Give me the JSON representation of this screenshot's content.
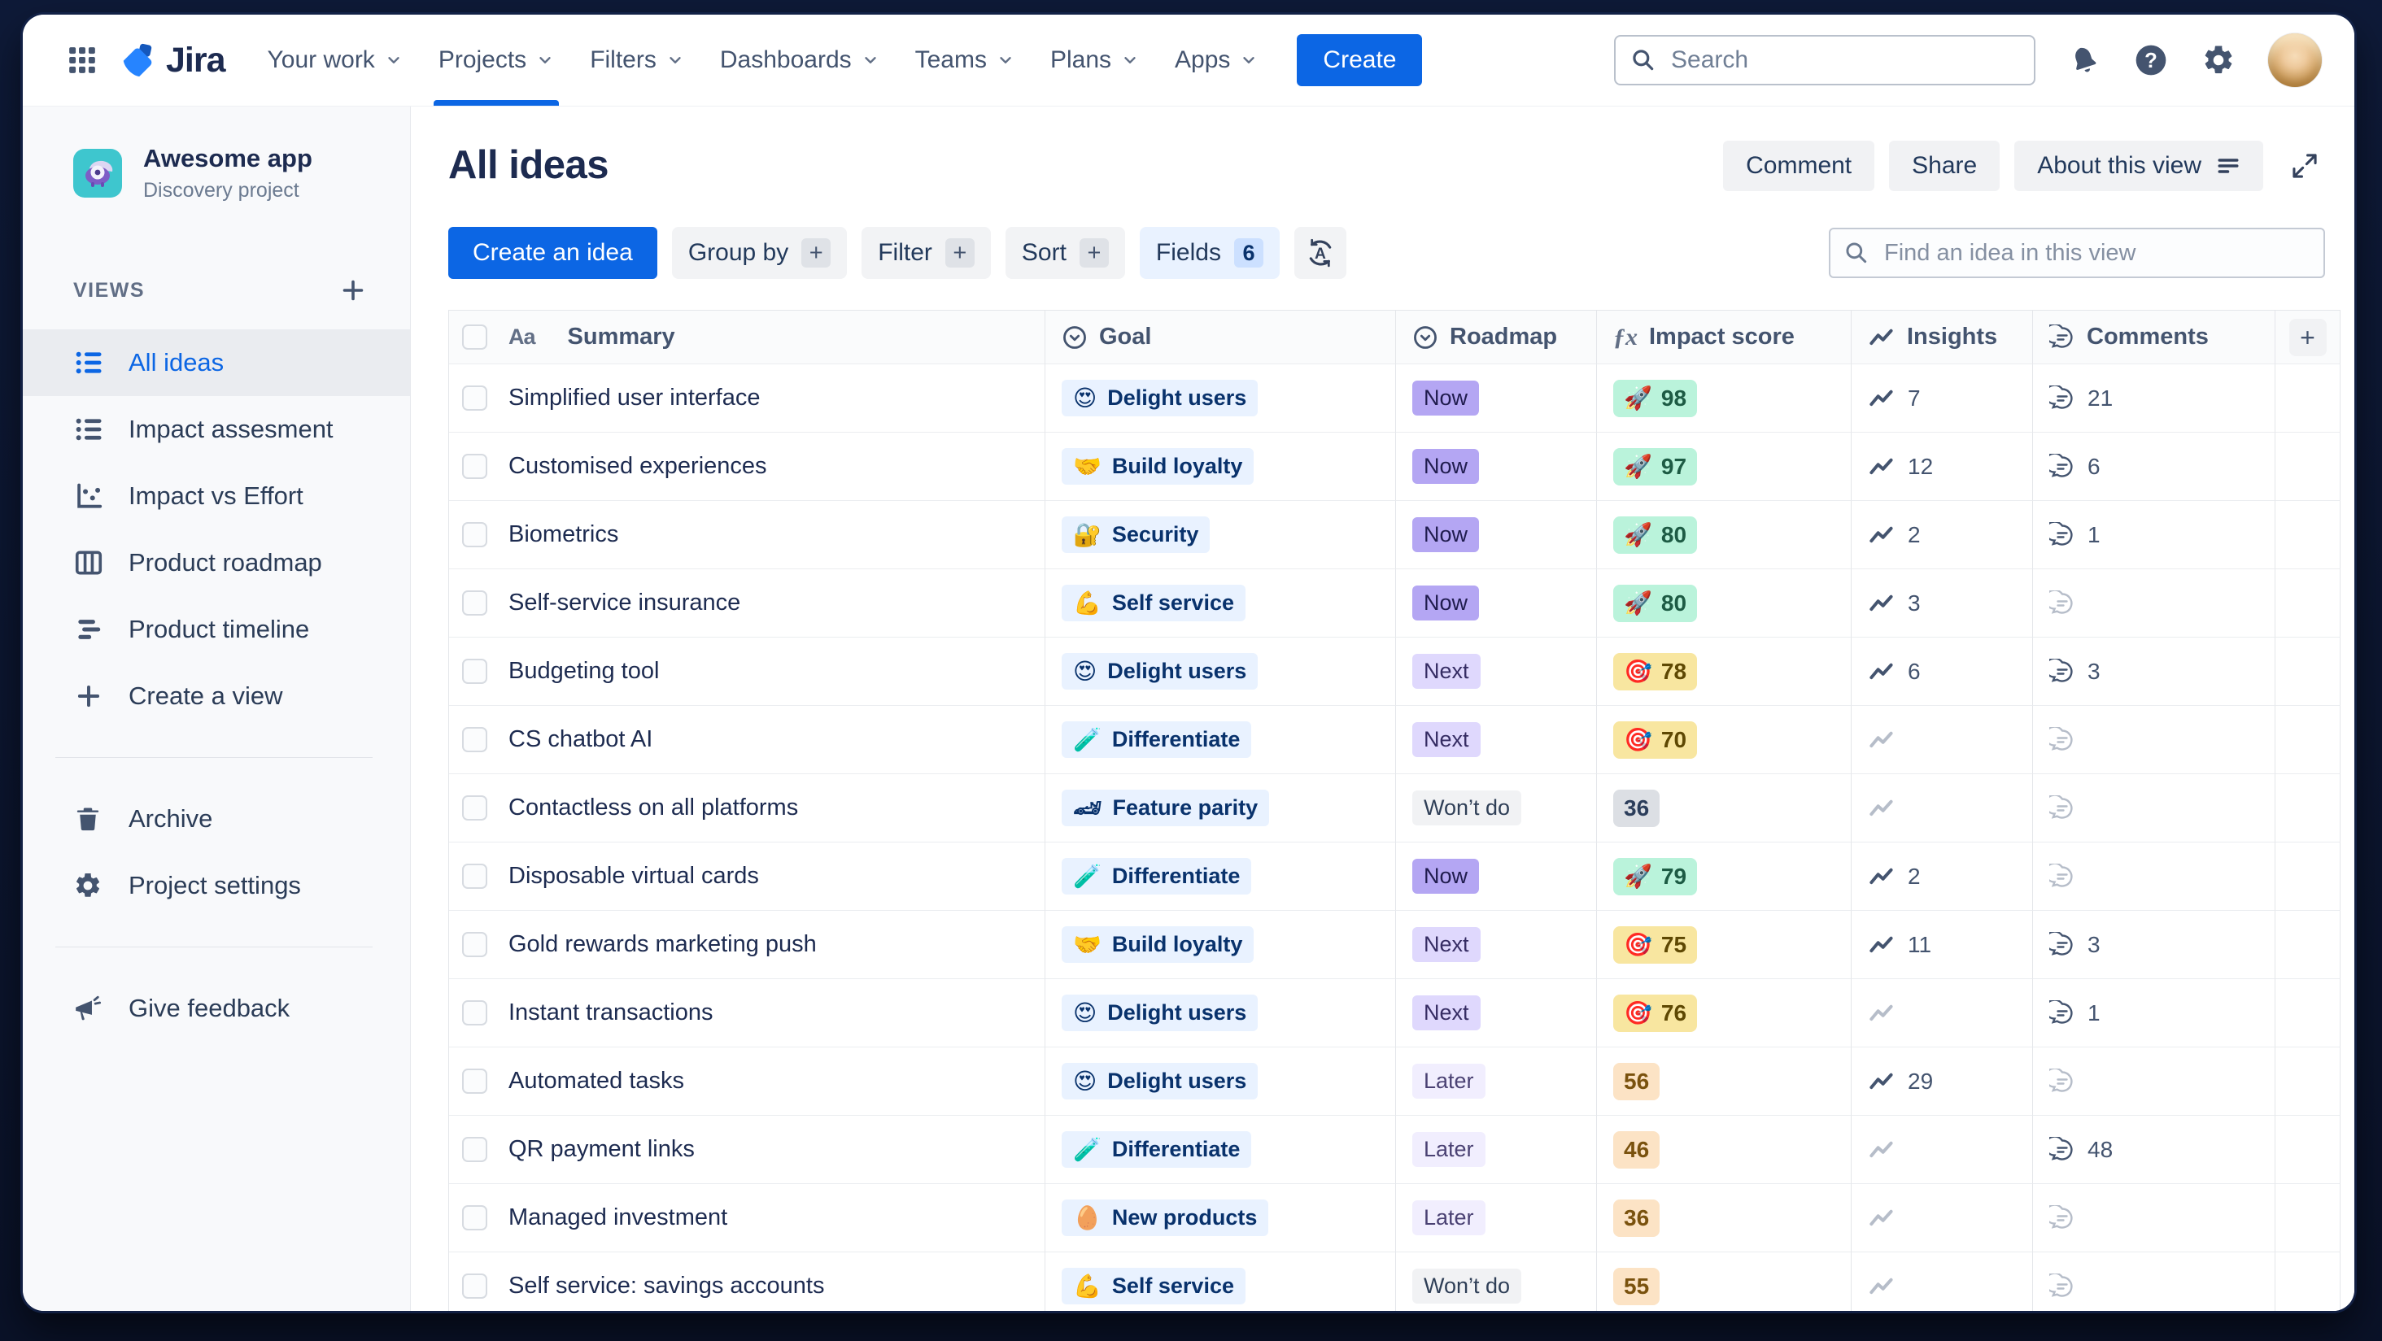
{
  "topnav": {
    "logo_text": "Jira",
    "menu": [
      {
        "label": "Your work",
        "active": false
      },
      {
        "label": "Projects",
        "active": true
      },
      {
        "label": "Filters",
        "active": false
      },
      {
        "label": "Dashboards",
        "active": false
      },
      {
        "label": "Teams",
        "active": false
      },
      {
        "label": "Plans",
        "active": false
      },
      {
        "label": "Apps",
        "active": false
      }
    ],
    "create_label": "Create",
    "search_placeholder": "Search",
    "right_icons": [
      "bell-icon",
      "help-icon",
      "gear-icon",
      "avatar"
    ]
  },
  "sidebar": {
    "project_name": "Awesome app",
    "project_type": "Discovery project",
    "views_label": "VIEWS",
    "views": [
      {
        "label": "All ideas",
        "icon": "list-icon",
        "selected": true
      },
      {
        "label": "Impact assesment",
        "icon": "list-icon",
        "selected": false
      },
      {
        "label": "Impact vs Effort",
        "icon": "scatter-icon",
        "selected": false
      },
      {
        "label": "Product roadmap",
        "icon": "board-icon",
        "selected": false
      },
      {
        "label": "Product timeline",
        "icon": "timeline-icon",
        "selected": false
      },
      {
        "label": "Create a view",
        "icon": "plus-icon",
        "selected": false
      }
    ],
    "footer": [
      {
        "label": "Archive",
        "icon": "trash-icon"
      },
      {
        "label": "Project settings",
        "icon": "gear-icon"
      }
    ],
    "feedback_label": "Give feedback"
  },
  "main": {
    "title": "All ideas",
    "actions": {
      "comment": "Comment",
      "share": "Share",
      "about": "About this view"
    },
    "toolbar": {
      "create": "Create an idea",
      "group_by": "Group by",
      "filter": "Filter",
      "sort": "Sort",
      "fields": "Fields",
      "fields_count": "6",
      "find_placeholder": "Find an idea in this view"
    },
    "table": {
      "columns": [
        {
          "label": "Summary",
          "icon": "text-type-icon"
        },
        {
          "label": "Goal",
          "icon": "select-icon"
        },
        {
          "label": "Roadmap",
          "icon": "select-icon"
        },
        {
          "label": "Impact score",
          "icon": "formula-icon"
        },
        {
          "label": "Insights",
          "icon": "trend-icon"
        },
        {
          "label": "Comments",
          "icon": "comment-icon"
        }
      ],
      "rows": [
        {
          "summary": "Simplified user interface",
          "goal_emoji": "😍",
          "goal": "Delight users",
          "roadmap": "Now",
          "roadmap_variant": "now",
          "impact_emoji": "🚀",
          "impact": "98",
          "impact_variant": "green",
          "insights": "7",
          "comments": "21"
        },
        {
          "summary": "Customised experiences",
          "goal_emoji": "🤝",
          "goal": "Build loyalty",
          "roadmap": "Now",
          "roadmap_variant": "now",
          "impact_emoji": "🚀",
          "impact": "97",
          "impact_variant": "green",
          "insights": "12",
          "comments": "6"
        },
        {
          "summary": "Biometrics",
          "goal_emoji": "🔐",
          "goal": "Security",
          "roadmap": "Now",
          "roadmap_variant": "now",
          "impact_emoji": "🚀",
          "impact": "80",
          "impact_variant": "green",
          "insights": "2",
          "comments": "1"
        },
        {
          "summary": "Self-service insurance",
          "goal_emoji": "💪",
          "goal": "Self service",
          "roadmap": "Now",
          "roadmap_variant": "now",
          "impact_emoji": "🚀",
          "impact": "80",
          "impact_variant": "green",
          "insights": "3",
          "comments": ""
        },
        {
          "summary": "Budgeting tool",
          "goal_emoji": "😍",
          "goal": "Delight users",
          "roadmap": "Next",
          "roadmap_variant": "next",
          "impact_emoji": "🎯",
          "impact": "78",
          "impact_variant": "yellow",
          "insights": "6",
          "comments": "3"
        },
        {
          "summary": "CS chatbot AI",
          "goal_emoji": "🧪",
          "goal": "Differentiate",
          "roadmap": "Next",
          "roadmap_variant": "next",
          "impact_emoji": "🎯",
          "impact": "70",
          "impact_variant": "yellow",
          "insights": "",
          "comments": ""
        },
        {
          "summary": "Contactless on all platforms",
          "goal_emoji": "🏎",
          "goal": "Feature parity",
          "roadmap": "Won’t do",
          "roadmap_variant": "wontdo",
          "impact_emoji": "",
          "impact": "36",
          "impact_variant": "gray",
          "insights": "",
          "comments": ""
        },
        {
          "summary": "Disposable virtual cards",
          "goal_emoji": "🧪",
          "goal": "Differentiate",
          "roadmap": "Now",
          "roadmap_variant": "now",
          "impact_emoji": "🚀",
          "impact": "79",
          "impact_variant": "green",
          "insights": "2",
          "comments": ""
        },
        {
          "summary": "Gold rewards marketing push",
          "goal_emoji": "🤝",
          "goal": "Build loyalty",
          "roadmap": "Next",
          "roadmap_variant": "next",
          "impact_emoji": "🎯",
          "impact": "75",
          "impact_variant": "yellow",
          "insights": "11",
          "comments": "3"
        },
        {
          "summary": "Instant transactions",
          "goal_emoji": "😍",
          "goal": "Delight users",
          "roadmap": "Next",
          "roadmap_variant": "next",
          "impact_emoji": "🎯",
          "impact": "76",
          "impact_variant": "yellow",
          "insights": "",
          "comments": "1"
        },
        {
          "summary": "Automated tasks",
          "goal_emoji": "😍",
          "goal": "Delight users",
          "roadmap": "Later",
          "roadmap_variant": "later",
          "impact_emoji": "",
          "impact": "56",
          "impact_variant": "peach",
          "insights": "29",
          "comments": ""
        },
        {
          "summary": "QR payment links",
          "goal_emoji": "🧪",
          "goal": "Differentiate",
          "roadmap": "Later",
          "roadmap_variant": "later",
          "impact_emoji": "",
          "impact": "46",
          "impact_variant": "peach",
          "insights": "",
          "comments": "48"
        },
        {
          "summary": "Managed investment",
          "goal_emoji": "🥚",
          "goal": "New products",
          "roadmap": "Later",
          "roadmap_variant": "later",
          "impact_emoji": "",
          "impact": "36",
          "impact_variant": "peach",
          "insights": "",
          "comments": ""
        },
        {
          "summary": "Self service: savings accounts",
          "goal_emoji": "💪",
          "goal": "Self service",
          "roadmap": "Won’t do",
          "roadmap_variant": "wontdo",
          "impact_emoji": "",
          "impact": "55",
          "impact_variant": "peach",
          "insights": "",
          "comments": ""
        }
      ]
    }
  },
  "colors": {
    "accent_blue": "#0C66E4",
    "text_primary": "#1D2B50",
    "text_secondary": "#44546F",
    "sidebar_bg": "#F8F9FB",
    "selected_item_bg": "#EAECF0",
    "goal_chip_bg": "#E9F2FF",
    "goal_chip_text": "#09326C",
    "roadmap_now_bg": "#B4A6F3",
    "roadmap_next_bg": "#DFD8FD",
    "roadmap_later_bg": "#F1EEFE",
    "roadmap_wontdo_bg": "#F1F2F4",
    "impact_green_bg": "#BAF3DB",
    "impact_yellow_bg": "#F8E6A0",
    "impact_gray_bg": "#DCDFE4",
    "impact_peach_bg": "#FCE3C5",
    "project_icon_bg": "#3EC6CE"
  }
}
